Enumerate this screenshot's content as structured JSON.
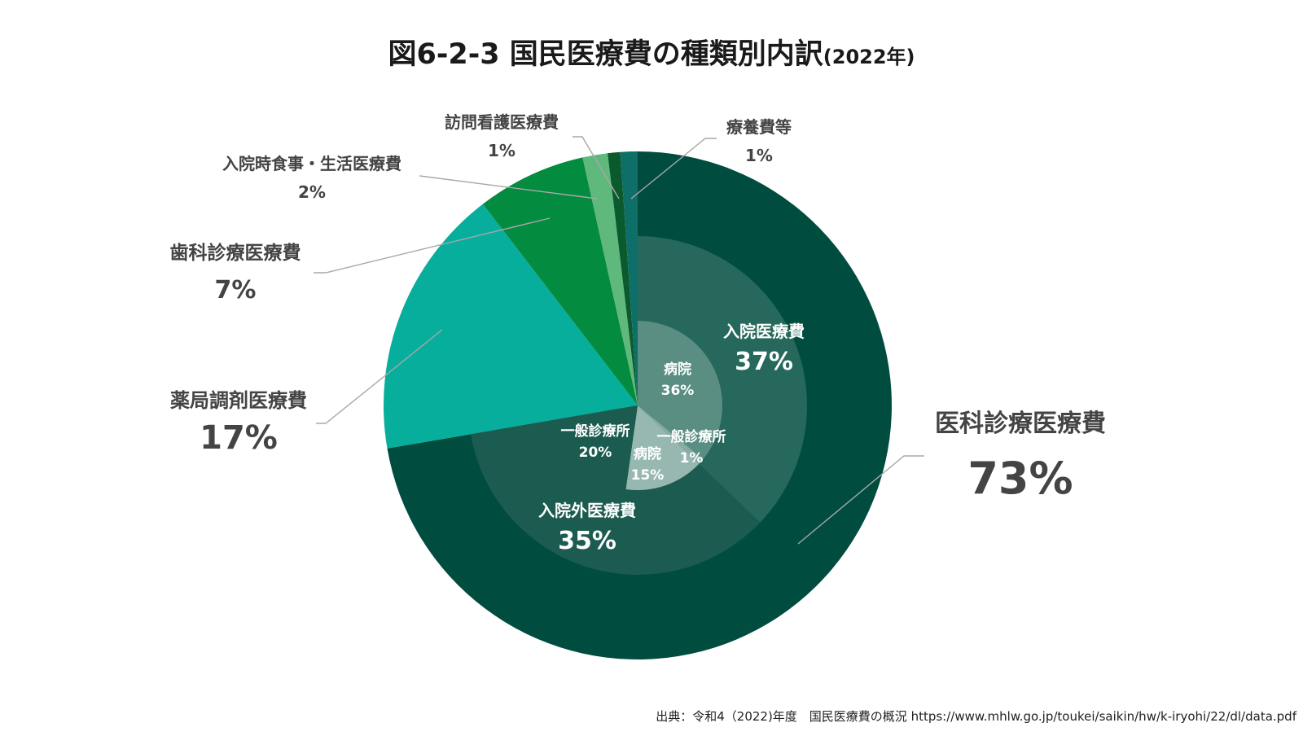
{
  "chart_data": {
    "type": "pie",
    "title": "図6-2-3 国民医療費の種類別内訳",
    "title_suffix": "(2022年)",
    "source": "出典：令和4（2022)年度　国民医療費の概況 https://www.mhlw.go.jp/toukei/saikin/hw/k-iryohi/22/dl/data.pdf",
    "rings": {
      "outer": [
        {
          "id": "ika",
          "name": "医科診療医療費",
          "value": 72.8,
          "label": "73%",
          "color": "#004d40"
        },
        {
          "id": "yakkyoku",
          "name": "薬局調剤医療費",
          "value": 17.4,
          "label": "17%",
          "color": "#07ae9c"
        },
        {
          "id": "shika",
          "name": "歯科診療医療費",
          "value": 7.0,
          "label": "7%",
          "color": "#038c3f"
        },
        {
          "id": "nyuinji",
          "name": "入院時食事・生活医療費",
          "value": 1.6,
          "label": "2%",
          "color": "#5fb87c"
        },
        {
          "id": "houmon",
          "name": "訪問看護医療費",
          "value": 0.8,
          "label": "1%",
          "color": "#0a5a2e"
        },
        {
          "id": "ryoyo",
          "name": "療養費等",
          "value": 1.1,
          "label": "1%",
          "color": "#0e6e68"
        }
      ],
      "middle": [
        {
          "id": "nyuin",
          "name": "入院医療費",
          "value": 37.4,
          "label": "37%",
          "color": "#26685b"
        },
        {
          "id": "gairai",
          "name": "入院外医療費",
          "value": 35.4,
          "label": "35%",
          "color": "#1c5b4f"
        }
      ],
      "inner": [
        {
          "id": "byoin1",
          "name": "病院",
          "value": 36.2,
          "label": "36%",
          "color": "#5a8e82"
        },
        {
          "id": "ippan1",
          "name": "一般診療所",
          "value": 1.2,
          "label": "1%",
          "color": "#86aca3"
        },
        {
          "id": "byoin2",
          "name": "病院",
          "value": 15.2,
          "label": "15%",
          "color": "#97b8b0"
        },
        {
          "id": "ippan2",
          "name": "一般診療所",
          "value": 20.2,
          "label": "20%",
          "color": "#1c5b4f"
        }
      ]
    }
  }
}
